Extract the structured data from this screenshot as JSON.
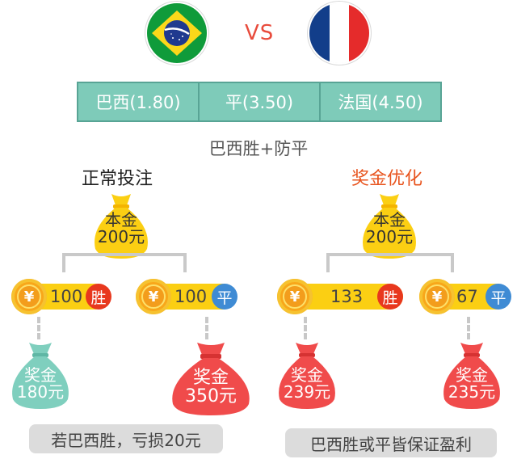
{
  "match": {
    "vs_label": "VS"
  },
  "odds": [
    {
      "label": "巴西(1.80)"
    },
    {
      "label": "平(3.50)"
    },
    {
      "label": "法国(4.50)"
    }
  ],
  "strategy": "巴西胜+防平",
  "left": {
    "title": "正常投注",
    "principal": {
      "line1": "本金",
      "line2": "200元"
    },
    "bets": [
      {
        "amount": "100",
        "outcome": "胜"
      },
      {
        "amount": "100",
        "outcome": "平"
      }
    ],
    "prizes": [
      {
        "line1": "奖金",
        "line2": "180元"
      },
      {
        "line1": "奖金",
        "line2": "350元"
      }
    ],
    "note": "若巴西胜，亏损20元"
  },
  "right": {
    "title": "奖金优化",
    "principal": {
      "line1": "本金",
      "line2": "200元"
    },
    "bets": [
      {
        "amount": "133",
        "outcome": "胜"
      },
      {
        "amount": "67",
        "outcome": "平"
      }
    ],
    "prizes": [
      {
        "line1": "奖金",
        "line2": "239元"
      },
      {
        "line1": "奖金",
        "line2": "235元"
      }
    ],
    "note": "巴西胜或平皆保证盈利"
  },
  "coin_symbol": "¥",
  "colors": {
    "gold": "#fbcf13",
    "teal_bag": "#7fcfbe",
    "red_bag": "#f04b4b",
    "orange_title": "#e8541e",
    "table": "#7ecbb9"
  },
  "icons": [
    "brazil-flag-icon",
    "france-flag-icon",
    "money-bag-icon",
    "yuan-coin-icon"
  ]
}
